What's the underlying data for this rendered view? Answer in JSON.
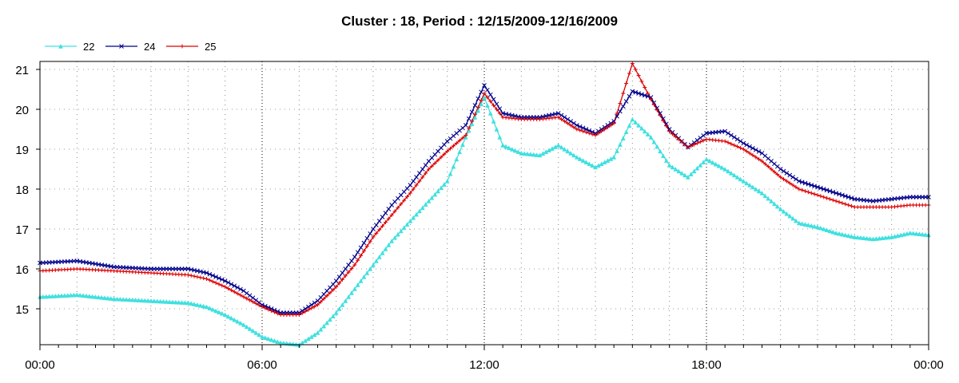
{
  "chart_data": {
    "type": "line",
    "title": "Cluster : 18, Period : 12/15/2009-12/16/2009",
    "xlabel": "",
    "ylabel": "",
    "x_ticks": [
      "00:00",
      "06:00",
      "12:00",
      "18:00",
      "00:00"
    ],
    "y_ticks": [
      "15",
      "16",
      "17",
      "18",
      "19",
      "20",
      "21"
    ],
    "xlim": [
      0,
      24
    ],
    "ylim": [
      14.1,
      21.2
    ],
    "grid": true,
    "legend_position": "top-left",
    "series": [
      {
        "name": "22",
        "color": "#40e0e0",
        "marker": "triangle",
        "x": [
          0,
          1,
          2,
          3,
          4,
          4.5,
          5,
          5.5,
          6,
          6.5,
          7,
          7.5,
          8,
          8.5,
          9,
          9.5,
          10,
          10.5,
          11,
          11.5,
          12,
          12.5,
          13,
          13.5,
          14,
          14.5,
          15,
          15.5,
          16,
          16.5,
          17,
          17.5,
          18,
          18.5,
          19,
          19.5,
          20,
          20.5,
          21,
          21.5,
          22,
          22.5,
          23,
          23.5,
          24
        ],
        "y": [
          15.3,
          15.35,
          15.25,
          15.2,
          15.15,
          15.05,
          14.85,
          14.6,
          14.3,
          14.15,
          14.1,
          14.4,
          14.9,
          15.5,
          16.1,
          16.7,
          17.2,
          17.7,
          18.2,
          19.3,
          20.3,
          19.1,
          18.9,
          18.85,
          19.1,
          18.8,
          18.55,
          18.8,
          19.75,
          19.3,
          18.6,
          18.3,
          18.75,
          18.5,
          18.2,
          17.9,
          17.5,
          17.15,
          17.05,
          16.9,
          16.8,
          16.75,
          16.8,
          16.9,
          16.85
        ]
      },
      {
        "name": "24",
        "color": "#00008b",
        "marker": "x",
        "x": [
          0,
          1,
          2,
          3,
          4,
          4.5,
          5,
          5.5,
          6,
          6.5,
          7,
          7.5,
          8,
          8.5,
          9,
          9.5,
          10,
          10.5,
          11,
          11.5,
          12,
          12.5,
          13,
          13.5,
          14,
          14.5,
          15,
          15.5,
          16,
          16.5,
          17,
          17.5,
          18,
          18.5,
          19,
          19.5,
          20,
          20.5,
          21,
          21.5,
          22,
          22.5,
          23,
          23.5,
          24
        ],
        "y": [
          16.15,
          16.2,
          16.05,
          16.0,
          16.0,
          15.9,
          15.7,
          15.45,
          15.1,
          14.9,
          14.9,
          15.2,
          15.7,
          16.3,
          17.0,
          17.6,
          18.1,
          18.7,
          19.2,
          19.6,
          20.6,
          19.9,
          19.8,
          19.8,
          19.9,
          19.6,
          19.4,
          19.7,
          20.45,
          20.3,
          19.5,
          19.05,
          19.4,
          19.45,
          19.15,
          18.9,
          18.5,
          18.2,
          18.05,
          17.9,
          17.75,
          17.7,
          17.75,
          17.8,
          17.8
        ]
      },
      {
        "name": "25",
        "color": "#dd0000",
        "marker": "plus",
        "x": [
          0,
          1,
          2,
          3,
          4,
          4.5,
          5,
          5.5,
          6,
          6.5,
          7,
          7.5,
          8,
          8.5,
          9,
          9.5,
          10,
          10.5,
          11,
          11.5,
          12,
          12.5,
          13,
          13.5,
          14,
          14.5,
          15,
          15.5,
          16,
          16.5,
          17,
          17.5,
          18,
          18.5,
          19,
          19.5,
          20,
          20.5,
          21,
          21.5,
          22,
          22.5,
          23,
          23.5,
          24
        ],
        "y": [
          15.95,
          16.0,
          15.95,
          15.9,
          15.85,
          15.75,
          15.55,
          15.3,
          15.05,
          14.85,
          14.85,
          15.1,
          15.55,
          16.1,
          16.8,
          17.35,
          17.9,
          18.5,
          18.95,
          19.35,
          20.4,
          19.8,
          19.75,
          19.75,
          19.8,
          19.5,
          19.35,
          19.65,
          21.15,
          20.25,
          19.45,
          19.05,
          19.25,
          19.2,
          19.0,
          18.7,
          18.3,
          18.0,
          17.85,
          17.7,
          17.55,
          17.55,
          17.55,
          17.6,
          17.6
        ]
      }
    ]
  }
}
